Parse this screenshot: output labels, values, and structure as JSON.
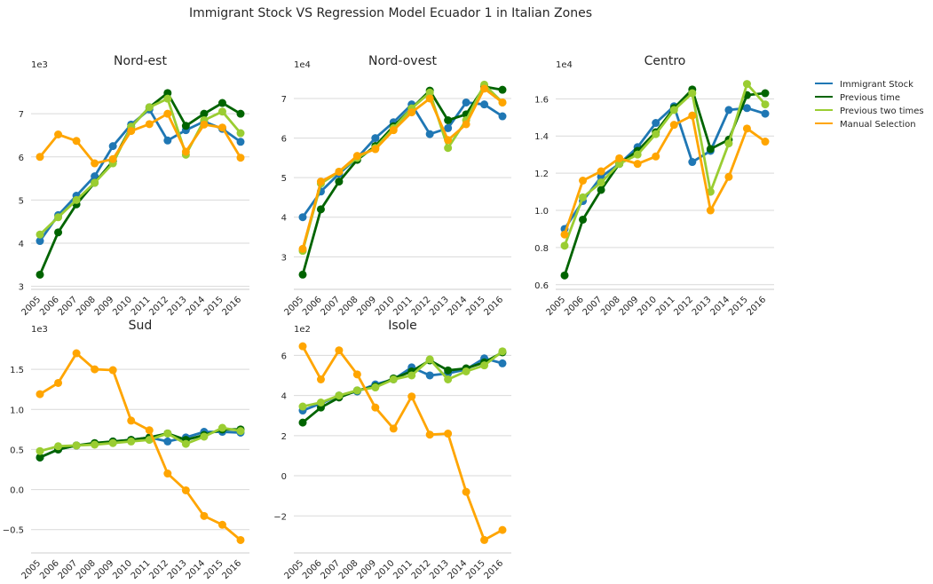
{
  "figure": {
    "title": "Immigrant Stock VS Regression Model Ecuador 1 in Italian Zones"
  },
  "legend": {
    "placement": "right",
    "entries": [
      {
        "label": "Immigrant Stock",
        "color": "#1f77b4"
      },
      {
        "label": "Previous time",
        "color": "#006400"
      },
      {
        "label": "Previous two times",
        "color": "#9acd32"
      },
      {
        "label": "Manual Selection",
        "color": "#ffa500"
      }
    ]
  },
  "chart_data": [
    {
      "type": "line",
      "title": "Nord-est",
      "scale_label": "1e3",
      "categories": [
        "2005",
        "2006",
        "2007",
        "2008",
        "2009",
        "2010",
        "2011",
        "2012",
        "2013",
        "2014",
        "2015",
        "2016"
      ],
      "ylim": [
        2.95,
        7.95
      ],
      "yticks": [
        3,
        4,
        5,
        6,
        7
      ],
      "ytick_labels": [
        "3",
        "4",
        "5",
        "6",
        "7"
      ],
      "grid": true,
      "series": [
        {
          "name": "Immigrant Stock",
          "color": "#1f77b4",
          "values": [
            4.05,
            4.65,
            5.1,
            5.55,
            6.25,
            6.75,
            7.1,
            6.38,
            6.62,
            6.82,
            6.65,
            6.35
          ]
        },
        {
          "name": "Previous time",
          "color": "#006400",
          "values": [
            3.27,
            4.25,
            4.9,
            5.4,
            5.9,
            6.7,
            7.15,
            7.48,
            6.72,
            7.0,
            7.25,
            7.0
          ]
        },
        {
          "name": "Previous two times",
          "color": "#9acd32",
          "values": [
            4.2,
            4.6,
            5.0,
            5.4,
            5.85,
            6.7,
            7.15,
            7.35,
            6.05,
            6.85,
            7.05,
            6.55
          ]
        },
        {
          "name": "Manual Selection",
          "color": "#ffa500",
          "values": [
            6.0,
            6.52,
            6.37,
            5.85,
            5.95,
            6.6,
            6.76,
            7.0,
            6.12,
            6.75,
            6.68,
            5.98
          ]
        }
      ]
    },
    {
      "type": "line",
      "title": "Nord-ovest",
      "scale_label": "1e4",
      "categories": [
        "2005",
        "2006",
        "2007",
        "2008",
        "2009",
        "2010",
        "2011",
        "2012",
        "2013",
        "2014",
        "2015",
        "2016"
      ],
      "ylim": [
        2.2,
        7.65
      ],
      "yticks": [
        3,
        4,
        5,
        6,
        7
      ],
      "ytick_labels": [
        "3",
        "4",
        "5",
        "6",
        "7"
      ],
      "grid": true,
      "series": [
        {
          "name": "Immigrant Stock",
          "color": "#1f77b4",
          "values": [
            4.0,
            4.65,
            5.1,
            5.5,
            6.0,
            6.4,
            6.85,
            6.1,
            6.25,
            6.9,
            6.85,
            6.55
          ]
        },
        {
          "name": "Previous time",
          "color": "#006400",
          "values": [
            2.55,
            4.2,
            4.9,
            5.45,
            5.8,
            6.3,
            6.75,
            7.2,
            6.45,
            6.6,
            7.3,
            7.22
          ]
        },
        {
          "name": "Previous two times",
          "color": "#9acd32",
          "values": [
            3.15,
            4.85,
            5.15,
            5.5,
            5.75,
            6.25,
            6.75,
            7.15,
            5.75,
            6.45,
            7.35,
            6.9
          ]
        },
        {
          "name": "Manual Selection",
          "color": "#ffa500",
          "values": [
            3.2,
            4.9,
            5.15,
            5.55,
            5.72,
            6.2,
            6.65,
            7.0,
            5.95,
            6.35,
            7.25,
            6.9
          ]
        }
      ]
    },
    {
      "type": "line",
      "title": "Centro",
      "scale_label": "1e4",
      "categories": [
        "2005",
        "2006",
        "2007",
        "2008",
        "2009",
        "2010",
        "2011",
        "2012",
        "2013",
        "2014",
        "2015",
        "2016"
      ],
      "ylim": [
        0.58,
        1.74
      ],
      "yticks": [
        0.6,
        0.8,
        1.0,
        1.2,
        1.4,
        1.6
      ],
      "ytick_labels": [
        "0.6",
        "0.8",
        "1.0",
        "1.2",
        "1.4",
        "1.6"
      ],
      "grid": true,
      "series": [
        {
          "name": "Immigrant Stock",
          "color": "#1f77b4",
          "values": [
            0.9,
            1.05,
            1.18,
            1.25,
            1.34,
            1.47,
            1.56,
            1.26,
            1.32,
            1.54,
            1.55,
            1.52
          ]
        },
        {
          "name": "Previous time",
          "color": "#006400",
          "values": [
            0.65,
            0.95,
            1.11,
            1.25,
            1.32,
            1.42,
            1.55,
            1.65,
            1.33,
            1.38,
            1.62,
            1.63
          ]
        },
        {
          "name": "Previous two times",
          "color": "#9acd32",
          "values": [
            0.81,
            1.07,
            1.15,
            1.25,
            1.3,
            1.41,
            1.54,
            1.63,
            1.1,
            1.36,
            1.68,
            1.57
          ]
        },
        {
          "name": "Manual Selection",
          "color": "#ffa500",
          "values": [
            0.87,
            1.16,
            1.21,
            1.28,
            1.25,
            1.29,
            1.46,
            1.51,
            1.0,
            1.18,
            1.44,
            1.37
          ]
        }
      ]
    },
    {
      "type": "line",
      "title": "Sud",
      "scale_label": "1e3",
      "categories": [
        "2005",
        "2006",
        "2007",
        "2008",
        "2009",
        "2010",
        "2011",
        "2012",
        "2013",
        "2014",
        "2015",
        "2016"
      ],
      "ylim": [
        -0.78,
        1.9
      ],
      "yticks": [
        -0.5,
        0.0,
        0.5,
        1.0,
        1.5
      ],
      "ytick_labels": [
        "−0.5",
        "0.0",
        "0.5",
        "1.0",
        "1.5"
      ],
      "grid": true,
      "series": [
        {
          "name": "Immigrant Stock",
          "color": "#1f77b4",
          "values": [
            0.4,
            0.5,
            0.55,
            0.57,
            0.6,
            0.62,
            0.65,
            0.6,
            0.65,
            0.72,
            0.72,
            0.71
          ]
        },
        {
          "name": "Previous time",
          "color": "#006400",
          "values": [
            0.4,
            0.5,
            0.55,
            0.58,
            0.6,
            0.62,
            0.65,
            0.7,
            0.62,
            0.68,
            0.75,
            0.75
          ]
        },
        {
          "name": "Previous two times",
          "color": "#9acd32",
          "values": [
            0.48,
            0.54,
            0.55,
            0.56,
            0.58,
            0.6,
            0.62,
            0.7,
            0.57,
            0.66,
            0.77,
            0.73
          ]
        },
        {
          "name": "Manual Selection",
          "color": "#ffa500",
          "values": [
            1.19,
            1.33,
            1.7,
            1.5,
            1.49,
            0.86,
            0.74,
            0.2,
            -0.01,
            -0.33,
            -0.44,
            -0.63
          ]
        }
      ]
    },
    {
      "type": "line",
      "title": "Isole",
      "scale_label": "1e2",
      "categories": [
        "2005",
        "2006",
        "2007",
        "2008",
        "2009",
        "2010",
        "2011",
        "2012",
        "2013",
        "2014",
        "2015",
        "2016"
      ],
      "ylim": [
        -3.8,
        6.9
      ],
      "yticks": [
        -2,
        0,
        2,
        4,
        6
      ],
      "ytick_labels": [
        "−2",
        "0",
        "2",
        "4",
        "6"
      ],
      "grid": true,
      "series": [
        {
          "name": "Immigrant Stock",
          "color": "#1f77b4",
          "values": [
            3.25,
            3.6,
            4.0,
            4.2,
            4.55,
            4.8,
            5.4,
            5.0,
            5.1,
            5.3,
            5.85,
            5.6
          ]
        },
        {
          "name": "Previous time",
          "color": "#006400",
          "values": [
            2.65,
            3.4,
            3.9,
            4.25,
            4.45,
            4.85,
            5.2,
            5.75,
            5.25,
            5.35,
            5.65,
            6.15
          ]
        },
        {
          "name": "Previous two times",
          "color": "#9acd32",
          "values": [
            3.45,
            3.65,
            4.0,
            4.25,
            4.4,
            4.8,
            5.0,
            5.8,
            4.8,
            5.2,
            5.5,
            6.2
          ]
        },
        {
          "name": "Manual Selection",
          "color": "#ffa500",
          "values": [
            6.45,
            4.8,
            6.25,
            5.05,
            3.4,
            2.35,
            3.95,
            2.05,
            2.1,
            -0.8,
            -3.2,
            -2.7
          ]
        }
      ]
    }
  ]
}
